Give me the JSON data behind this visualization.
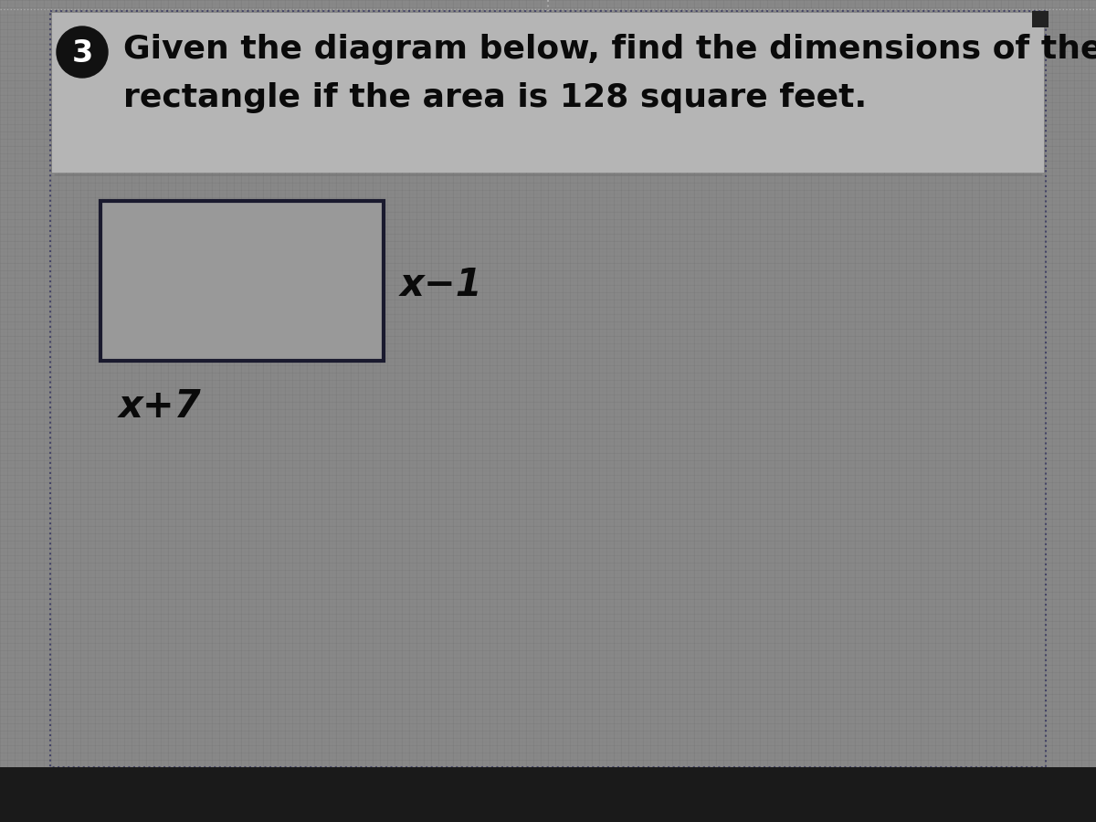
{
  "title_line1": "Given the diagram below, find the dimensions of the",
  "title_line2": "rectangle if the area is 128 square feet.",
  "problem_number": "3",
  "label_right": "x−1",
  "label_bottom": "x+7",
  "bg_color": "#888888",
  "bg_inner_color": "#909090",
  "rect_fill": "#aaaaaa",
  "rect_edge": "#1a1a2e",
  "title_bg_color": "#c0c0c0",
  "border_color": "#444466",
  "title_color": "#0a0a0a",
  "number_bg": "#111111",
  "number_fg": "#ffffff",
  "bottom_bar_color": "#1a1a1a",
  "grid_color_light": "#999999",
  "grid_color_dark": "#777777",
  "title_area_color": "#b8b8b8"
}
